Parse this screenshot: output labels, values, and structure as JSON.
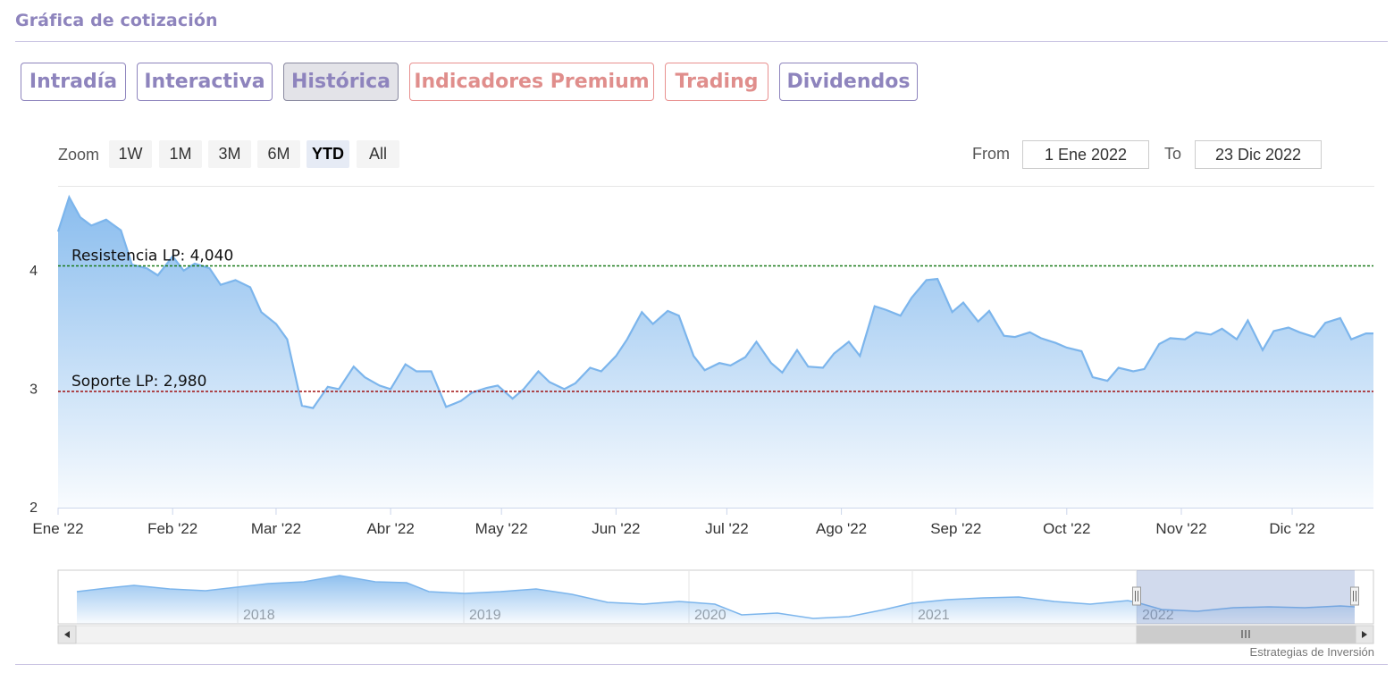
{
  "page": {
    "title": "Gráfica de cotización",
    "credit": "Estrategias de Inversión"
  },
  "tabs": [
    {
      "label": "Intradía",
      "type": "normal",
      "active": false
    },
    {
      "label": "Interactiva",
      "type": "normal",
      "active": false
    },
    {
      "label": "Histórica",
      "type": "normal",
      "active": true
    },
    {
      "label": "Indicadores Premium",
      "type": "premium",
      "active": false
    },
    {
      "label": "Trading",
      "type": "premium",
      "active": false
    },
    {
      "label": "Dividendos",
      "type": "normal",
      "active": false
    }
  ],
  "range_selector": {
    "zoom_label": "Zoom",
    "buttons": [
      "1W",
      "1M",
      "3M",
      "6M",
      "YTD",
      "All"
    ],
    "selected": "YTD",
    "from_label": "From",
    "from_value": "1 Ene 2022",
    "to_label": "To",
    "to_value": "23 Dic 2022"
  },
  "colors": {
    "brand": "#8e84bd",
    "premium": "#e08e8c",
    "series_line": "#7cb5ec",
    "resistance": "#1a7a1a",
    "support": "#a01010"
  },
  "chart_data": {
    "type": "area",
    "title": "",
    "xlabel": "",
    "ylabel": "",
    "ylim": [
      2,
      4.7
    ],
    "y_ticks": [
      2,
      3,
      4
    ],
    "x_ticks": [
      "Ene '22",
      "Feb '22",
      "Mar '22",
      "Abr '22",
      "May '22",
      "Jun '22",
      "Jul '22",
      "Ago '22",
      "Sep '22",
      "Oct '22",
      "Nov '22",
      "Dic '22"
    ],
    "x_range": [
      "2022-01-01",
      "2022-12-23"
    ],
    "grid": false,
    "legend": "none",
    "plot_lines": [
      {
        "label": "Resistencia LP: 4,040",
        "value": 4.04,
        "style": "dashed",
        "color": "#1a7a1a"
      },
      {
        "label": "Soporte LP: 2,980",
        "value": 2.98,
        "style": "dashed",
        "color": "#a01010"
      }
    ],
    "series": [
      {
        "x": [
          "2022-01-01",
          "2022-01-04",
          "2022-01-07",
          "2022-01-10",
          "2022-01-14",
          "2022-01-18",
          "2022-01-21",
          "2022-01-25",
          "2022-01-28",
          "2022-02-01",
          "2022-02-04",
          "2022-02-07",
          "2022-02-11",
          "2022-02-14",
          "2022-02-18",
          "2022-02-22",
          "2022-02-25",
          "2022-03-01",
          "2022-03-04",
          "2022-03-08",
          "2022-03-11",
          "2022-03-15",
          "2022-03-18",
          "2022-03-22",
          "2022-03-25",
          "2022-03-29",
          "2022-04-01",
          "2022-04-05",
          "2022-04-08",
          "2022-04-12",
          "2022-04-16",
          "2022-04-20",
          "2022-04-23",
          "2022-04-27",
          "2022-04-30",
          "2022-05-04",
          "2022-05-07",
          "2022-05-11",
          "2022-05-14",
          "2022-05-18",
          "2022-05-21",
          "2022-05-25",
          "2022-05-28",
          "2022-06-01",
          "2022-06-04",
          "2022-06-08",
          "2022-06-11",
          "2022-06-15",
          "2022-06-18",
          "2022-06-22",
          "2022-06-25",
          "2022-06-29",
          "2022-07-02",
          "2022-07-06",
          "2022-07-09",
          "2022-07-13",
          "2022-07-16",
          "2022-07-20",
          "2022-07-23",
          "2022-07-27",
          "2022-07-30",
          "2022-08-03",
          "2022-08-06",
          "2022-08-10",
          "2022-08-13",
          "2022-08-17",
          "2022-08-20",
          "2022-08-24",
          "2022-08-27",
          "2022-08-31",
          "2022-09-03",
          "2022-09-07",
          "2022-09-10",
          "2022-09-14",
          "2022-09-17",
          "2022-09-21",
          "2022-09-24",
          "2022-09-28",
          "2022-10-01",
          "2022-10-05",
          "2022-10-08",
          "2022-10-12",
          "2022-10-15",
          "2022-10-19",
          "2022-10-22",
          "2022-10-26",
          "2022-10-29",
          "2022-11-02",
          "2022-11-05",
          "2022-11-09",
          "2022-11-12",
          "2022-11-16",
          "2022-11-19",
          "2022-11-23",
          "2022-11-26",
          "2022-11-30",
          "2022-12-03",
          "2022-12-07",
          "2022-12-10",
          "2022-12-14",
          "2022-12-17",
          "2022-12-21",
          "2022-12-23"
        ],
        "values": [
          4.33,
          4.62,
          4.45,
          4.38,
          4.43,
          4.34,
          4.05,
          4.02,
          3.96,
          4.12,
          4.0,
          4.06,
          4.02,
          3.88,
          3.92,
          3.86,
          3.65,
          3.55,
          3.42,
          2.86,
          2.84,
          3.02,
          3.0,
          3.19,
          3.1,
          3.03,
          3.0,
          3.21,
          3.15,
          3.15,
          2.85,
          2.9,
          2.97,
          3.01,
          3.03,
          2.92,
          3.0,
          3.15,
          3.06,
          3.0,
          3.05,
          3.18,
          3.15,
          3.28,
          3.42,
          3.65,
          3.55,
          3.66,
          3.62,
          3.28,
          3.16,
          3.22,
          3.2,
          3.27,
          3.4,
          3.22,
          3.14,
          3.33,
          3.19,
          3.18,
          3.3,
          3.4,
          3.28,
          3.7,
          3.67,
          3.62,
          3.77,
          3.92,
          3.93,
          3.65,
          3.73,
          3.57,
          3.66,
          3.45,
          3.44,
          3.48,
          3.43,
          3.39,
          3.35,
          3.32,
          3.1,
          3.07,
          3.18,
          3.15,
          3.17,
          3.38,
          3.43,
          3.42,
          3.48,
          3.46,
          3.51,
          3.42,
          3.58,
          3.33,
          3.49,
          3.52,
          3.48,
          3.44,
          3.56,
          3.6,
          3.42,
          3.47,
          3.47
        ]
      }
    ],
    "navigator": {
      "x_ticks": [
        "2018",
        "2019",
        "2020",
        "2021",
        "2022"
      ],
      "selected_range": [
        "2022-01-01",
        "2022-12-23"
      ]
    }
  }
}
